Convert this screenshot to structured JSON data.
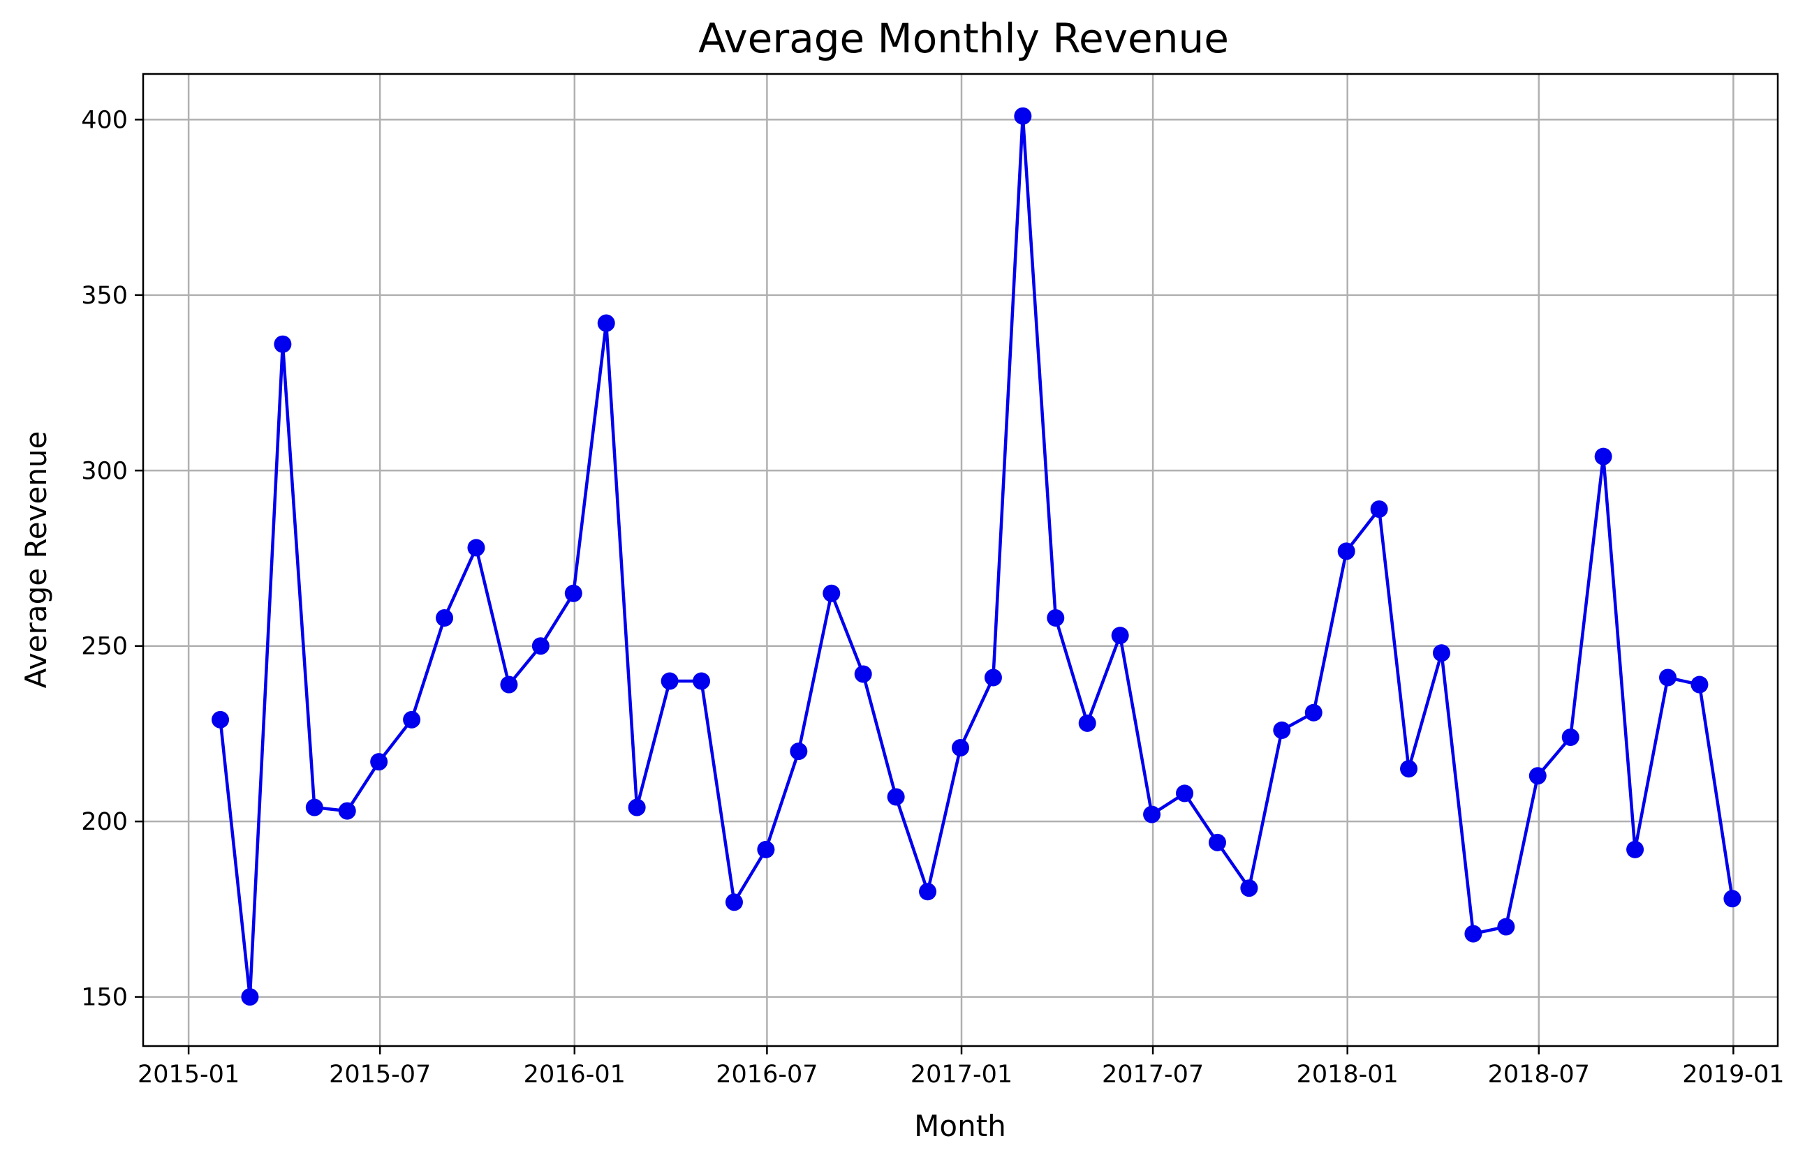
{
  "chart_data": {
    "type": "line",
    "title": "Average Monthly Revenue",
    "xlabel": "Month",
    "ylabel": "Average Revenue",
    "x_ticks": [
      "2015-01",
      "2015-07",
      "2016-01",
      "2016-07",
      "2017-01",
      "2017-07",
      "2018-01",
      "2018-07",
      "2019-01"
    ],
    "y_ticks": [
      150,
      200,
      250,
      300,
      350,
      400
    ],
    "xlim": [
      "2014-11-19",
      "2019-02-12"
    ],
    "ylim": [
      136,
      413
    ],
    "grid": true,
    "series": [
      {
        "color": "#0000ee",
        "marker": "circle",
        "x": [
          "2015-01-31",
          "2015-02-28",
          "2015-03-31",
          "2015-04-30",
          "2015-05-31",
          "2015-06-30",
          "2015-07-31",
          "2015-08-31",
          "2015-09-30",
          "2015-10-31",
          "2015-11-30",
          "2015-12-31",
          "2016-01-31",
          "2016-02-29",
          "2016-03-31",
          "2016-04-30",
          "2016-05-31",
          "2016-06-30",
          "2016-07-31",
          "2016-08-31",
          "2016-09-30",
          "2016-10-31",
          "2016-11-30",
          "2016-12-31",
          "2017-01-31",
          "2017-02-28",
          "2017-03-31",
          "2017-04-30",
          "2017-05-31",
          "2017-06-30",
          "2017-07-31",
          "2017-08-31",
          "2017-09-30",
          "2017-10-31",
          "2017-11-30",
          "2017-12-31",
          "2018-01-31",
          "2018-02-28",
          "2018-03-31",
          "2018-04-30",
          "2018-05-31",
          "2018-06-30",
          "2018-07-31",
          "2018-08-31",
          "2018-09-30",
          "2018-10-31",
          "2018-11-30",
          "2018-12-31"
        ],
        "y": [
          229,
          150,
          336,
          204,
          203,
          217,
          229,
          258,
          278,
          239,
          250,
          265,
          342,
          204,
          240,
          240,
          177,
          192,
          220,
          265,
          242,
          207,
          180,
          221,
          241,
          401,
          258,
          228,
          253,
          202,
          208,
          194,
          181,
          226,
          231,
          277,
          289,
          215,
          248,
          168,
          170,
          213,
          224,
          304,
          192,
          241,
          239,
          178
        ]
      }
    ]
  }
}
